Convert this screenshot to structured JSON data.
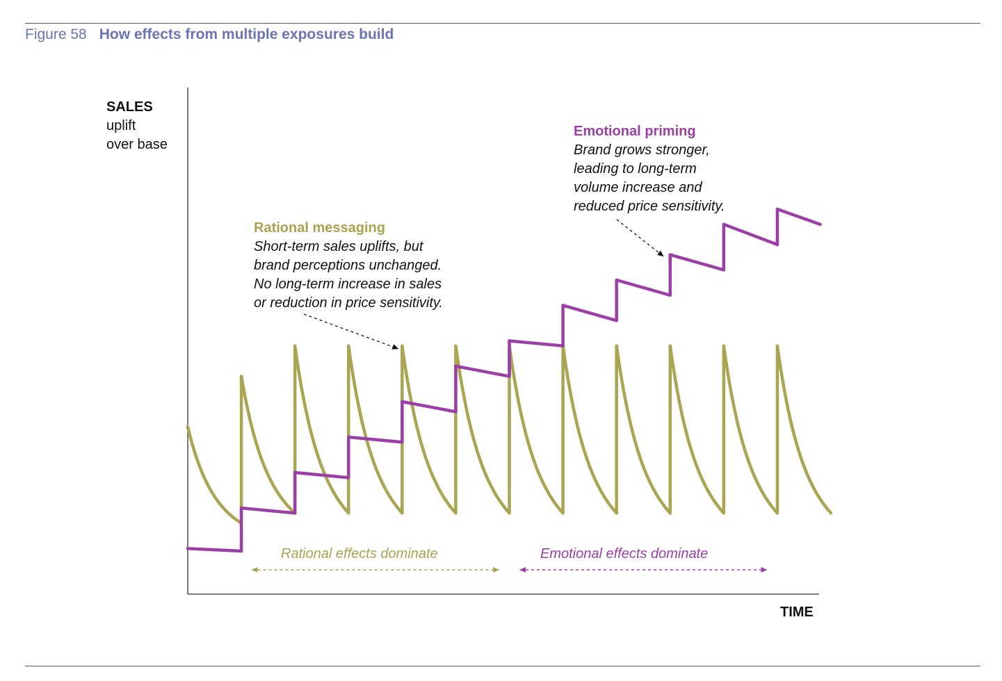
{
  "figure": {
    "number": "Figure 58",
    "title": "How effects from multiple exposures build"
  },
  "colors": {
    "rational": "#aaa553",
    "emotional": "#9b3fa6",
    "axis": "#333333",
    "header": "#6b74b4"
  },
  "chart_data": {
    "type": "line",
    "title": "How effects from multiple exposures build",
    "ylabel": "SALES uplift over base",
    "xlabel": "TIME",
    "y_label_lines": [
      "SALES",
      "uplift",
      "over base"
    ],
    "grid": false,
    "axis_ranges": {
      "x": [
        0,
        12
      ],
      "y": [
        0,
        100
      ]
    },
    "series": [
      {
        "name": "Rational messaging",
        "style": "sawtooth with exponential decay after each exposure",
        "exposure_times": [
          1,
          2,
          3,
          4,
          5,
          6,
          7,
          8,
          9,
          10,
          11
        ],
        "initial_value": 33,
        "peak_values": [
          43,
          49,
          49,
          49,
          49,
          49,
          49,
          49,
          49,
          49,
          49
        ],
        "trough_value": 16,
        "end_time": 12
      },
      {
        "name": "Emotional priming",
        "style": "step-up with slight decay",
        "exposure_times": [
          1,
          2,
          3,
          4,
          5,
          6,
          7,
          8,
          9,
          10,
          11
        ],
        "initial_value": 9,
        "segment_start_values": [
          17,
          24,
          31,
          38,
          45,
          50,
          57,
          62,
          67,
          73,
          76
        ],
        "segment_end_values": [
          16,
          23,
          30,
          36,
          43,
          49,
          54,
          59,
          64,
          69,
          73
        ],
        "end_time": 11.8
      }
    ],
    "annotations": [
      {
        "series": "Rational messaging",
        "heading": "Rational messaging",
        "lines": [
          "Short-term sales uplifts, but",
          "brand perceptions unchanged.",
          "No long-term increase in sales",
          "or reduction in price sensitivity."
        ],
        "points_to_exposure": 4
      },
      {
        "series": "Emotional priming",
        "heading": "Emotional priming",
        "lines": [
          "Brand grows stronger,",
          "leading to long-term",
          "volume increase and",
          "reduced price sensitivity."
        ],
        "points_to_exposure": 9
      }
    ],
    "phases": [
      {
        "label": "Rational effects dominate",
        "series": "Rational messaging",
        "x_range": [
          1.2,
          5.8
        ]
      },
      {
        "label": "Emotional effects dominate",
        "series": "Emotional priming",
        "x_range": [
          6.2,
          10.8
        ]
      }
    ]
  }
}
